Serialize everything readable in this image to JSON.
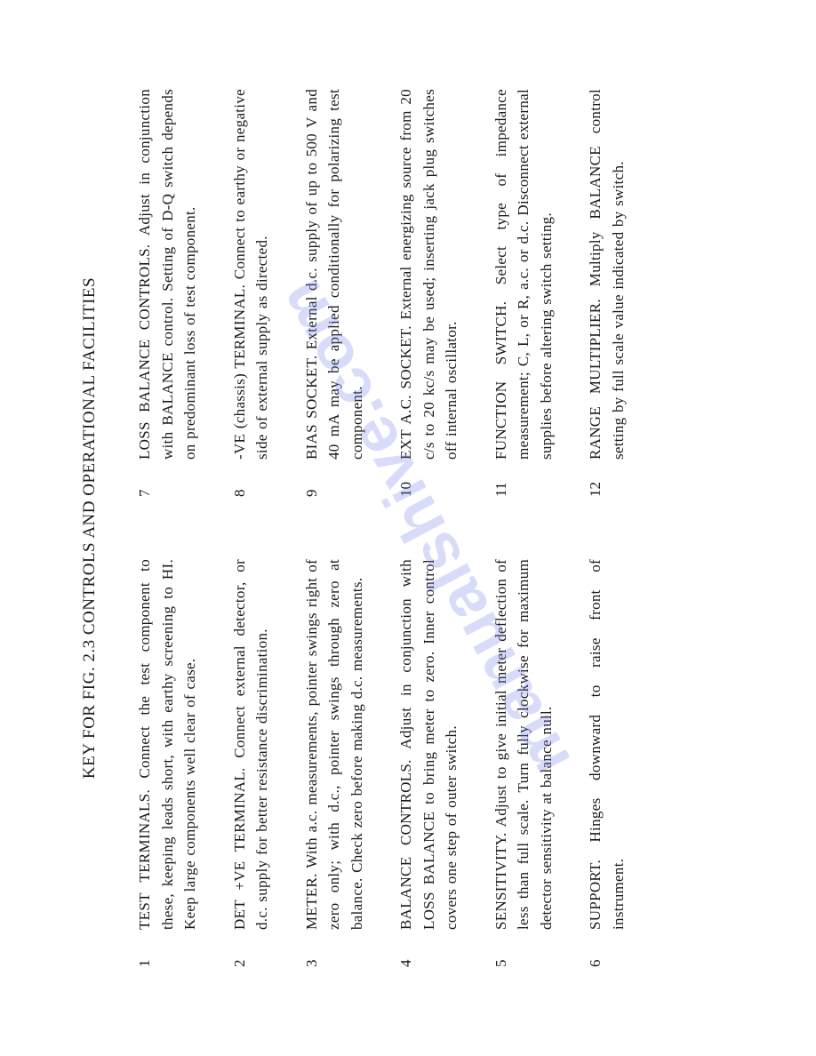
{
  "title": "KEY FOR FIG. 2.3 CONTROLS AND OPERATIONAL FACILITIES",
  "watermark": "manualshive.com",
  "left": [
    {
      "num": "1",
      "desc": "TEST TERMINALS. Connect the test component to these, keeping leads short, with earthy screening to HI. Keep large components well clear of case."
    },
    {
      "num": "2",
      "desc": "DET +VE TERMINAL. Connect external detector, or d.c. supply for better resistance discrimination."
    },
    {
      "num": "3",
      "desc": "METER. With a.c. measurements, pointer swings right of zero only; with d.c., pointer swings through zero at balance. Check zero before making d.c. measurements."
    },
    {
      "num": "4",
      "desc": "BALANCE CONTROLS. Adjust in conjunction with LOSS BALANCE to bring meter to zero. Inner control covers one step of outer switch."
    },
    {
      "num": "5",
      "desc": "SENSITIVITY. Adjust to give initial meter deflection of less than full scale. Turn fully clockwise for maximum detector sensitivity at balance null."
    },
    {
      "num": "6",
      "desc": "SUPPORT. Hinges downward to raise front of instrument."
    }
  ],
  "right": [
    {
      "num": "7",
      "desc": "LOSS BALANCE CONTROLS. Adjust in conjunction with BALANCE control. Setting of D-Q switch depends on predominant loss of test component."
    },
    {
      "num": "8",
      "desc": "-VE (chassis) TERMINAL. Connect to earthy or negative side of external supply as directed."
    },
    {
      "num": "9",
      "desc": "BIAS SOCKET. External d.c. supply of up to 500 V and 40 mA may be applied conditionally for polarizing test component."
    },
    {
      "num": "10",
      "desc": "EXT A.C. SOCKET. External energizing source from 20 c/s to 20 kc/s may be used; inserting jack plug switches off internal oscillator."
    },
    {
      "num": "11",
      "desc": "FUNCTION SWITCH. Select type of impedance measurement; C, L, or R, a.c. or d.c. Disconnect external supplies before altering switch setting."
    },
    {
      "num": "12",
      "desc": "RANGE MULTIPLIER. Multiply BALANCE control setting by full scale value indicated by switch."
    }
  ]
}
